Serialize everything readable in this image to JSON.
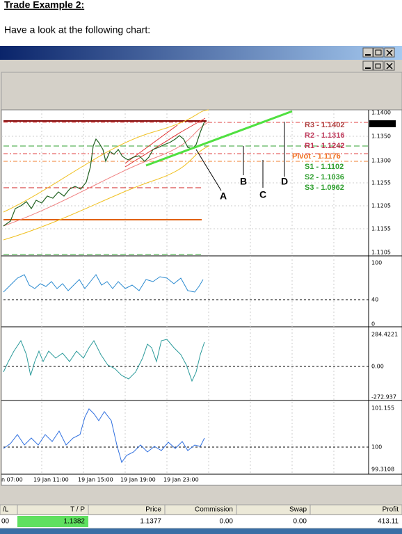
{
  "header": {
    "title": "Trade Example 2:",
    "intro": "Have a look at the following chart:"
  },
  "chart": {
    "price_axis": [
      "1.1400",
      "1.1350",
      "1.1300",
      "1.1255",
      "1.1205",
      "1.1155",
      "1.1105"
    ],
    "current_price": "1.1377",
    "pivots": [
      "R3 - 1.1402",
      "R2 - 1.1316",
      "R1 - 1.1242",
      "Pivot - 1.1176",
      "S1 - 1.1102",
      "S2 - 1.1036",
      "S3 - 1.0962"
    ],
    "annotations": [
      "A",
      "B",
      "C",
      "D"
    ],
    "indicator1_axis": [
      "100",
      "40",
      "0"
    ],
    "indicator2_axis": [
      "284.4221",
      "0.00",
      "-272.937"
    ],
    "indicator3_axis": [
      "101.155",
      "100",
      "99.3108"
    ],
    "time_axis": [
      "n 07:00",
      "19 Jan 11:00",
      "19 Jan 15:00",
      "19 Jan 19:00",
      "19 Jan 23:00"
    ]
  },
  "table": {
    "headers": [
      "/L",
      "T / P",
      "Price",
      "Commission",
      "Swap",
      "Profit"
    ],
    "rows": [
      [
        "00",
        "1.1382",
        "1.1377",
        "0.00",
        "0.00",
        "413.11"
      ]
    ]
  }
}
